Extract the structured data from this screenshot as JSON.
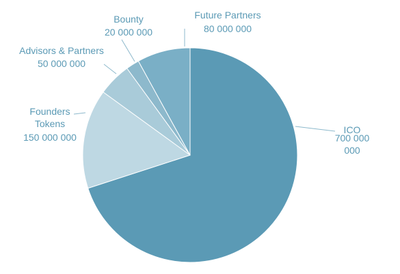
{
  "chart_data": {
    "type": "pie",
    "categories": [
      "ICO",
      "Founders Tokens",
      "Advisors & Partners",
      "Bounty",
      "Future Partners"
    ],
    "values": [
      700000000,
      150000000,
      50000000,
      20000000,
      80000000
    ],
    "value_labels": [
      "700 000 000",
      "150 000 000",
      "50 000 000",
      "20 000 000",
      "80 000 000"
    ],
    "colors": [
      "#5b9ab5",
      "#bed8e3",
      "#a9cbd9",
      "#8db9cc",
      "#7aafc6"
    ]
  }
}
